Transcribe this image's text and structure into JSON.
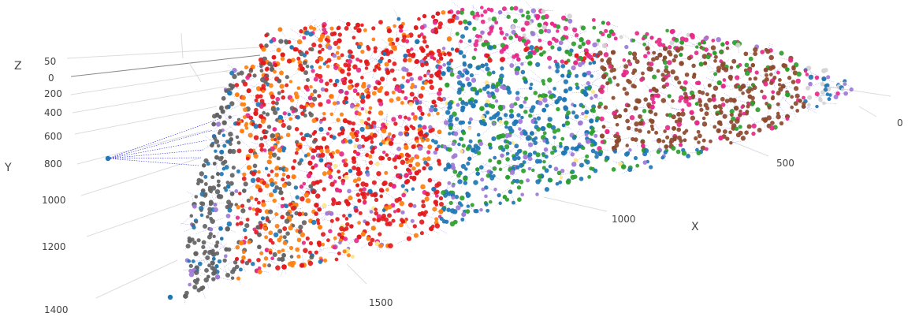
{
  "chart_data": {
    "type": "scatter",
    "title": "",
    "axes": {
      "x": {
        "label": "X",
        "ticks": [
          "0",
          "500",
          "1000",
          "1500"
        ],
        "range": [
          0,
          1700
        ]
      },
      "y": {
        "label": "Y",
        "ticks": [
          "0",
          "200",
          "400",
          "600",
          "800",
          "1000",
          "1200",
          "1400"
        ],
        "range": [
          0,
          1450
        ]
      },
      "z": {
        "label": "Z",
        "ticks": [
          "50",
          "0"
        ],
        "range": [
          0,
          60
        ]
      }
    },
    "grid": true,
    "legend": "none",
    "edges": {
      "color": "#2a2ae0",
      "style": "dotted"
    },
    "node_colors": [
      "#636363",
      "#ff7f0e",
      "#e31a1c",
      "#e7298a",
      "#2ca02c",
      "#1f77b4",
      "#9e7ad6",
      "#8c4a2f",
      "#fde68a",
      "#d4d4d4"
    ]
  }
}
